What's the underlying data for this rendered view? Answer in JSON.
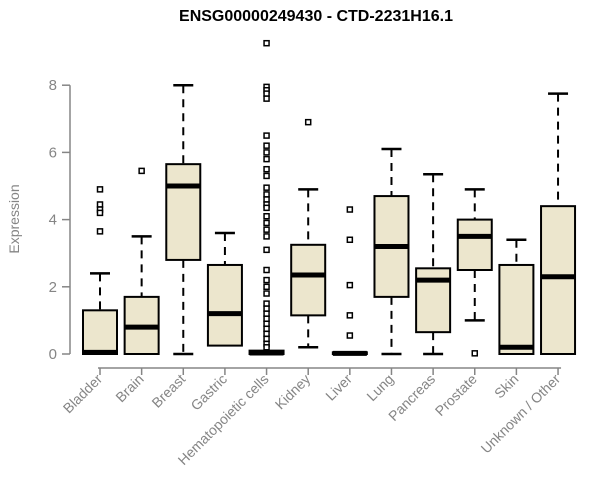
{
  "chart_data": {
    "type": "boxplot",
    "title": "ENSG00000249430 - CTD-2231H16.1",
    "xlabel": "",
    "ylabel": "Expression",
    "ylim": [
      0,
      9.3
    ],
    "yticks": [
      0,
      2,
      4,
      6,
      8
    ],
    "grid": false,
    "legend": "none",
    "categories": [
      "Bladder",
      "Brain",
      "Breast",
      "Gastric",
      "Hematopoietic cells",
      "Kidney",
      "Liver",
      "Lung",
      "Pancreas",
      "Prostate",
      "Skin",
      "Unknown / Other"
    ],
    "boxes": [
      {
        "category": "Bladder",
        "q1": 0,
        "median": 0.05,
        "q3": 1.3,
        "whisker_low": 0,
        "whisker_high": 2.4,
        "outliers": [
          4.9,
          4.45,
          4.3,
          4.2,
          3.65
        ]
      },
      {
        "category": "Brain",
        "q1": 0,
        "median": 0.8,
        "q3": 1.7,
        "whisker_low": 0,
        "whisker_high": 3.5,
        "outliers": [
          5.45
        ]
      },
      {
        "category": "Breast",
        "q1": 2.8,
        "median": 5.0,
        "q3": 5.65,
        "whisker_low": 0,
        "whisker_high": 8.0,
        "outliers": []
      },
      {
        "category": "Gastric",
        "q1": 0.25,
        "median": 1.2,
        "q3": 2.65,
        "whisker_low": 0.25,
        "whisker_high": 3.6,
        "outliers": []
      },
      {
        "category": "Hematopoietic cells",
        "q1": 0,
        "median": 0.03,
        "q3": 0.1,
        "whisker_low": 0,
        "whisker_high": 0.1,
        "outliers": [
          9.25,
          7.95,
          7.85,
          7.75,
          7.6,
          6.5,
          6.2,
          6.0,
          5.8,
          5.5,
          5.3,
          4.95,
          4.75,
          4.6,
          4.45,
          4.35,
          4.1,
          3.9,
          3.7,
          3.5,
          3.1,
          2.5,
          2.2,
          2.0,
          1.8,
          1.5,
          1.35,
          1.2,
          1.05,
          0.9,
          0.75,
          0.6,
          0.45,
          0.3,
          0.2
        ]
      },
      {
        "category": "Kidney",
        "q1": 1.15,
        "median": 2.35,
        "q3": 3.25,
        "whisker_low": 0.2,
        "whisker_high": 4.9,
        "outliers": [
          6.9
        ]
      },
      {
        "category": "Liver",
        "q1": 0,
        "median": 0.02,
        "q3": 0.05,
        "whisker_low": 0,
        "whisker_high": 0.05,
        "outliers": [
          4.3,
          3.4,
          2.05,
          1.15,
          0.55
        ]
      },
      {
        "category": "Lung",
        "q1": 1.7,
        "median": 3.2,
        "q3": 4.7,
        "whisker_low": 0,
        "whisker_high": 6.1,
        "outliers": []
      },
      {
        "category": "Pancreas",
        "q1": 0.65,
        "median": 2.2,
        "q3": 2.55,
        "whisker_low": 0,
        "whisker_high": 5.35,
        "outliers": []
      },
      {
        "category": "Prostate",
        "q1": 2.5,
        "median": 3.5,
        "q3": 4.0,
        "whisker_low": 1.0,
        "whisker_high": 4.9,
        "outliers": [
          0.02
        ]
      },
      {
        "category": "Skin",
        "q1": 0,
        "median": 0.2,
        "q3": 2.65,
        "whisker_low": 0,
        "whisker_high": 3.4,
        "outliers": []
      },
      {
        "category": "Unknown / Other",
        "q1": 0,
        "median": 2.3,
        "q3": 4.4,
        "whisker_low": 0,
        "whisker_high": 7.75,
        "outliers": []
      }
    ],
    "colors": {
      "box_fill": "#ece6cd",
      "box_border": "#000000",
      "median": "#000000",
      "whisker": "#000000",
      "axis": "#858585",
      "tick_label": "#858585",
      "title": "#000000",
      "background": "#ffffff"
    }
  }
}
